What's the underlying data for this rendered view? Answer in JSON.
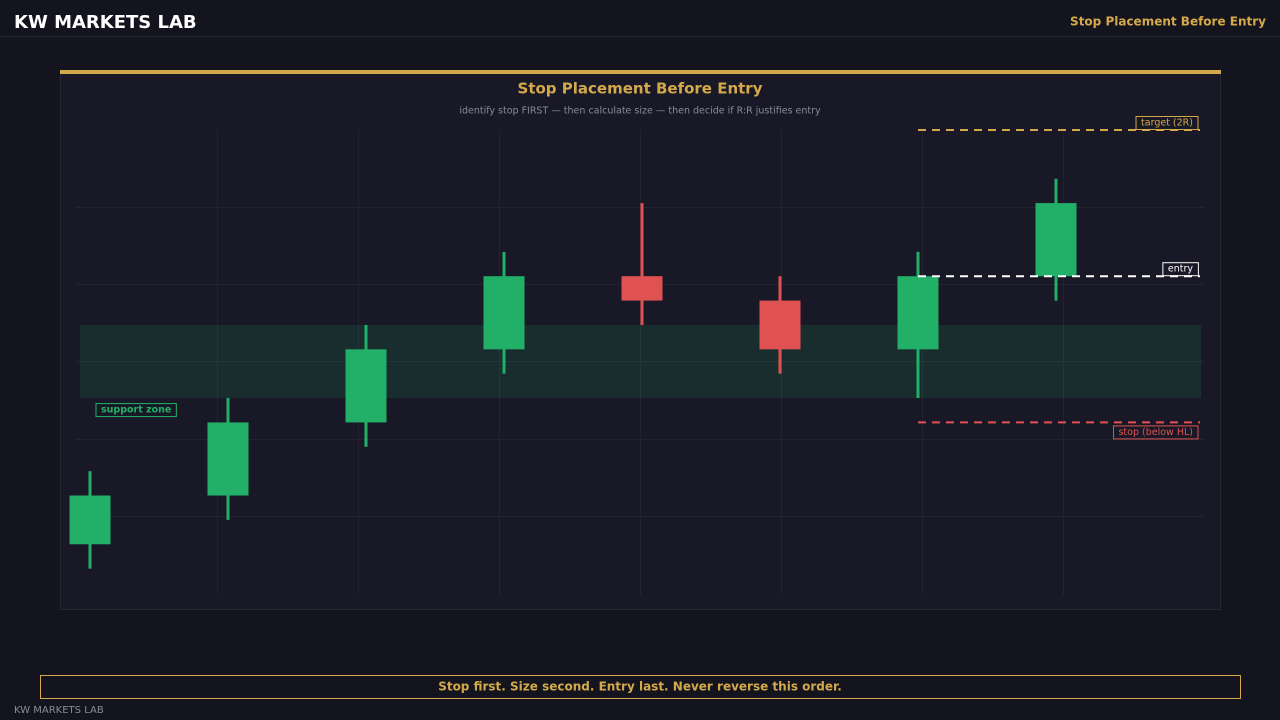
{
  "header": {
    "brand": "KW MARKETS LAB",
    "section": "Stop Placement Before Entry"
  },
  "chart_data": {
    "type": "candlestick",
    "title": "Stop Placement Before Entry",
    "subtitle": "identify stop FIRST — then calculate size — then decide if R:R justifies entry",
    "open": [
      2,
      4,
      7,
      10,
      13,
      12,
      10,
      13
    ],
    "high": [
      5,
      8,
      11,
      14,
      16,
      13,
      14,
      17
    ],
    "low": [
      1,
      3,
      6,
      9,
      11,
      9,
      8,
      12
    ],
    "close": [
      4,
      7,
      10,
      13,
      12,
      10,
      13,
      16
    ],
    "up_color": "#22b068",
    "down_color": "#e05252",
    "ylim": [
      0,
      19
    ],
    "zone": {
      "label": "support zone",
      "low": 8,
      "high": 11,
      "color": "#22b068"
    },
    "levels": [
      {
        "name": "target (2R)",
        "value": 19,
        "color": "#d4a94a"
      },
      {
        "name": "entry",
        "value": 13,
        "color": "#ffffff"
      },
      {
        "name": "stop (below HL)",
        "value": 7,
        "color": "#e05252"
      }
    ]
  },
  "footer": {
    "note": "Stop first. Size second. Entry last. Never reverse this order.",
    "brand": "KW MARKETS LAB"
  }
}
